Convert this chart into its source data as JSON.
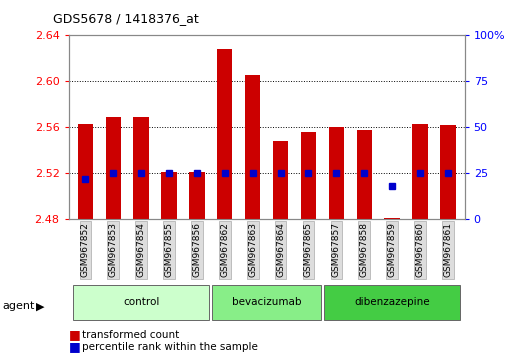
{
  "title": "GDS5678 / 1418376_at",
  "samples": [
    "GSM967852",
    "GSM967853",
    "GSM967854",
    "GSM967855",
    "GSM967856",
    "GSM967862",
    "GSM967863",
    "GSM967864",
    "GSM967865",
    "GSM967857",
    "GSM967858",
    "GSM967859",
    "GSM967860",
    "GSM967861"
  ],
  "transformed_count": [
    2.563,
    2.569,
    2.569,
    2.521,
    2.521,
    2.628,
    2.606,
    2.548,
    2.556,
    2.56,
    2.558,
    2.481,
    2.563,
    2.562
  ],
  "percentile_rank": [
    22,
    25,
    25,
    25,
    25,
    25,
    25,
    25,
    25,
    25,
    25,
    18,
    25,
    25
  ],
  "ylim_left": [
    2.48,
    2.64
  ],
  "ylim_right": [
    0,
    100
  ],
  "yticks_left": [
    2.48,
    2.52,
    2.56,
    2.6,
    2.64
  ],
  "yticks_right": [
    0,
    25,
    50,
    75,
    100
  ],
  "bar_color": "#cc0000",
  "dot_color": "#0000cc",
  "bar_width": 0.55,
  "grid_color": "#000000",
  "bg_color": "#ffffff",
  "plot_bg": "#ffffff",
  "title_color": "black",
  "title_fontsize": 9,
  "left_tick_color": "red",
  "right_tick_color": "blue",
  "group_configs": [
    {
      "label": "control",
      "color": "#ccffcc",
      "start": 0,
      "end": 4
    },
    {
      "label": "bevacizumab",
      "color": "#88ee88",
      "start": 5,
      "end": 8
    },
    {
      "label": "dibenzazepine",
      "color": "#44cc44",
      "start": 9,
      "end": 13
    }
  ],
  "agent_label": "agent",
  "legend_tc": "transformed count",
  "legend_pr": "percentile rank within the sample"
}
